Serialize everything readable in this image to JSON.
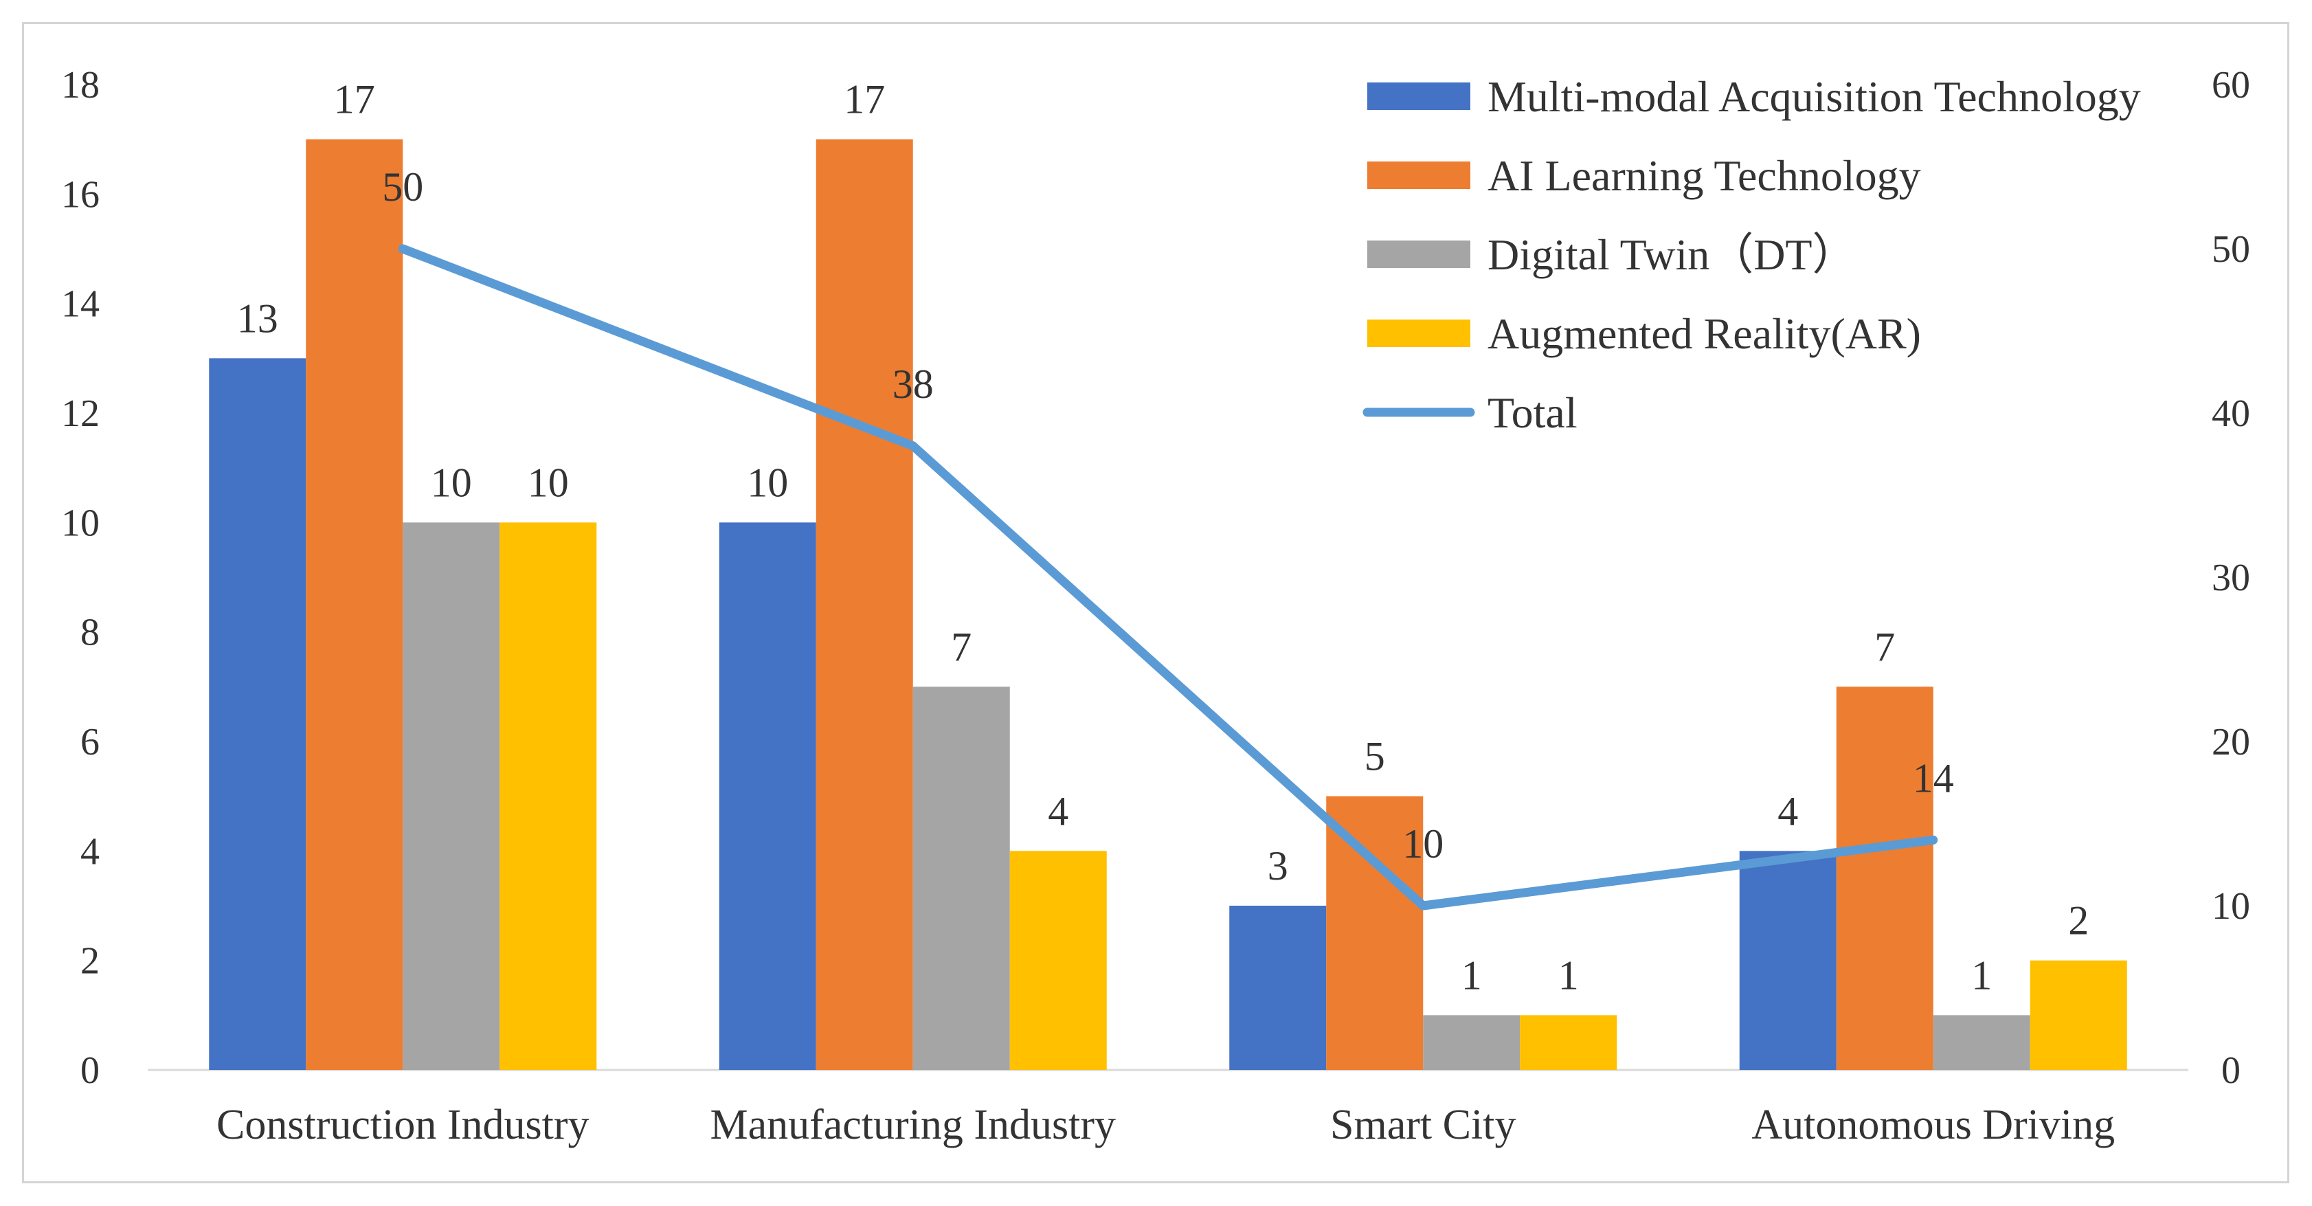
{
  "chart_data": {
    "type": "bar",
    "categories": [
      "Construction Industry",
      "Manufacturing Industry",
      "Smart City",
      "Autonomous Driving"
    ],
    "series": [
      {
        "name": "Multi-modal Acquisition Technology",
        "type": "bar",
        "axis": "left",
        "color": "#4472C4",
        "values": [
          13,
          10,
          3,
          4
        ]
      },
      {
        "name": "AI Learning Technology",
        "type": "bar",
        "axis": "left",
        "color": "#ED7D31",
        "values": [
          17,
          17,
          5,
          7
        ]
      },
      {
        "name": "Digital Twin（DT）",
        "type": "bar",
        "axis": "left",
        "color": "#A5A5A5",
        "values": [
          10,
          7,
          1,
          1
        ]
      },
      {
        "name": "Augmented Reality(AR)",
        "type": "bar",
        "axis": "left",
        "color": "#FFC000",
        "values": [
          10,
          4,
          1,
          2
        ]
      },
      {
        "name": "Total",
        "type": "line",
        "axis": "right",
        "color": "#5B9BD5",
        "values": [
          50,
          38,
          10,
          14
        ]
      }
    ],
    "y_left": {
      "min": 0,
      "max": 18,
      "ticks": [
        0,
        2,
        4,
        6,
        8,
        10,
        12,
        14,
        16,
        18
      ]
    },
    "y_right": {
      "min": 0,
      "max": 60,
      "ticks": [
        0,
        10,
        20,
        30,
        40,
        50,
        60
      ]
    },
    "legend": "top-right",
    "grid": false,
    "data_labels": true,
    "title": "",
    "xlabel": "",
    "ylabel": ""
  }
}
